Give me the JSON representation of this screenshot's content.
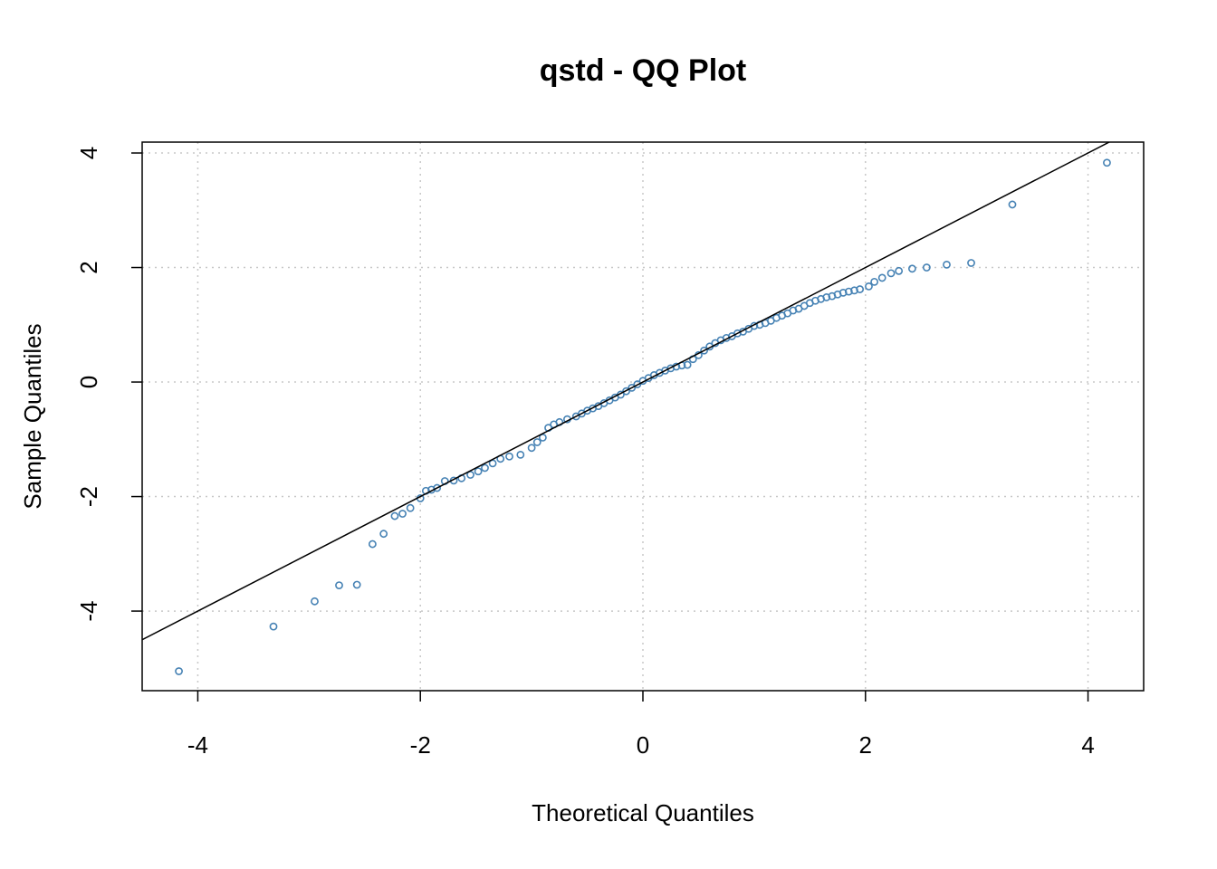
{
  "chart_data": {
    "type": "scatter",
    "title": "qstd - QQ Plot",
    "x_label": "Theoretical Quantiles",
    "y_label": "Sample Quantiles",
    "xlim": [
      -4.5,
      4.5
    ],
    "ylim": [
      -5.39,
      4.19
    ],
    "xticks": [
      -4,
      -2,
      0,
      2,
      4
    ],
    "yticks": [
      -4,
      -2,
      0,
      2,
      4
    ],
    "grid": true,
    "qqline": {
      "slope": 1.0,
      "intercept": 0.0,
      "color": "#000000"
    },
    "series": [
      {
        "color": "#4682b4",
        "x": [
          -4.17,
          -3.32,
          -2.95,
          -2.73,
          -2.57,
          -2.43,
          -2.33,
          -2.23,
          -2.16,
          -2.09,
          -2.0,
          -1.95,
          -1.9,
          -1.85,
          -1.78,
          -1.7,
          -1.63,
          -1.55,
          -1.48,
          -1.42,
          -1.35,
          -1.28,
          -1.2,
          -1.1,
          -1.0,
          -0.95,
          -0.9,
          -0.85,
          -0.8,
          -0.75,
          -0.68,
          -0.6,
          -0.55,
          -0.5,
          -0.45,
          -0.4,
          -0.35,
          -0.3,
          -0.25,
          -0.2,
          -0.15,
          -0.1,
          -0.05,
          0,
          0.05,
          0.1,
          0.15,
          0.2,
          0.25,
          0.3,
          0.35,
          0.4,
          0.45,
          0.5,
          0.55,
          0.6,
          0.65,
          0.7,
          0.75,
          0.8,
          0.85,
          0.9,
          0.95,
          1.0,
          1.05,
          1.1,
          1.15,
          1.2,
          1.25,
          1.3,
          1.35,
          1.4,
          1.45,
          1.5,
          1.55,
          1.6,
          1.65,
          1.7,
          1.75,
          1.8,
          1.85,
          1.9,
          1.95,
          2.03,
          2.08,
          2.15,
          2.23,
          2.3,
          2.42,
          2.55,
          2.73,
          2.95,
          3.32,
          4.17
        ],
        "values": [
          -5.05,
          -4.27,
          -3.83,
          -3.55,
          -3.54,
          -2.83,
          -2.65,
          -2.34,
          -2.3,
          -2.2,
          -2.03,
          -1.9,
          -1.88,
          -1.85,
          -1.73,
          -1.72,
          -1.68,
          -1.62,
          -1.56,
          -1.5,
          -1.42,
          -1.34,
          -1.3,
          -1.27,
          -1.15,
          -1.05,
          -0.97,
          -0.8,
          -0.74,
          -0.7,
          -0.65,
          -0.6,
          -0.55,
          -0.5,
          -0.46,
          -0.42,
          -0.37,
          -0.32,
          -0.27,
          -0.22,
          -0.16,
          -0.1,
          -0.04,
          0.02,
          0.07,
          0.12,
          0.16,
          0.2,
          0.24,
          0.27,
          0.29,
          0.3,
          0.4,
          0.47,
          0.55,
          0.62,
          0.68,
          0.73,
          0.77,
          0.8,
          0.85,
          0.88,
          0.93,
          0.98,
          1.0,
          1.03,
          1.07,
          1.12,
          1.16,
          1.2,
          1.25,
          1.28,
          1.33,
          1.38,
          1.42,
          1.45,
          1.48,
          1.5,
          1.53,
          1.56,
          1.58,
          1.6,
          1.62,
          1.67,
          1.75,
          1.82,
          1.9,
          1.94,
          1.98,
          2.0,
          2.05,
          2.08,
          3.1,
          3.83
        ]
      }
    ]
  }
}
